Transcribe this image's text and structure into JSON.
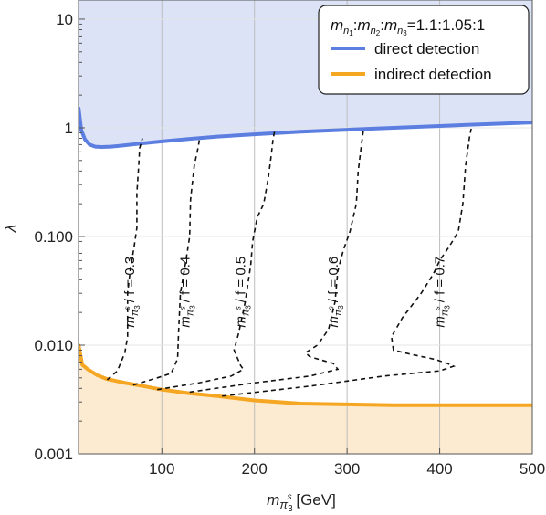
{
  "chart_data": {
    "type": "line",
    "title": "",
    "xlabel_main": "m",
    "xlabel_sub": "π",
    "xlabel_sub2": "3",
    "xlabel_sup": "s",
    "xlabel_unit": " [GeV]",
    "ylabel": "λ",
    "xlim": [
      10,
      500
    ],
    "ylim": [
      0.001,
      15
    ],
    "yscale": "log",
    "xticks": [
      100,
      200,
      300,
      400,
      500
    ],
    "xtick_labels": [
      "100",
      "200",
      "300",
      "400",
      "500"
    ],
    "yticks": [
      0.001,
      0.01,
      0.1,
      1,
      10
    ],
    "ytick_labels": [
      "0.001",
      "0.010",
      "0.100",
      "1",
      "10"
    ],
    "grid": true,
    "legend_position": "top-right",
    "legend_title": "m_{n1}:m_{n2}:m_{n3}=1.1:1.05:1",
    "legend_title_parts": {
      "m": "m",
      "n": "n",
      "s1": "1",
      "s2": "2",
      "s3": "3",
      "c": ":",
      "ratio": "=1.1:1.05:1"
    },
    "series": [
      {
        "name": "direct detection",
        "color": "#5b7ee0",
        "fill": "#dce3f7",
        "x": [
          10,
          13,
          17,
          22,
          28,
          35,
          45,
          60,
          80,
          100,
          130,
          160,
          200,
          250,
          300,
          350,
          400,
          450,
          500
        ],
        "y": [
          1.55,
          0.95,
          0.78,
          0.7,
          0.67,
          0.665,
          0.67,
          0.69,
          0.72,
          0.75,
          0.79,
          0.83,
          0.87,
          0.92,
          0.96,
          1.0,
          1.04,
          1.08,
          1.12
        ]
      },
      {
        "name": "indirect detection",
        "color": "#f5a623",
        "fill": "#fcebd0",
        "x": [
          10,
          14,
          20,
          30,
          40,
          60,
          80,
          100,
          130,
          160,
          200,
          250,
          300,
          350,
          400,
          450,
          500
        ],
        "y": [
          0.0102,
          0.0066,
          0.006,
          0.0053,
          0.0049,
          0.0045,
          0.0042,
          0.0039,
          0.0036,
          0.0034,
          0.0031,
          0.0029,
          0.00285,
          0.0028,
          0.0028,
          0.0028,
          0.0028
        ]
      }
    ],
    "contours": [
      {
        "label": "0.3",
        "label_x": 70,
        "label_y": 0.012,
        "x": [
          41,
          52,
          60,
          63,
          63,
          66,
          70,
          73,
          73,
          75,
          76,
          79
        ],
        "y": [
          0.0048,
          0.0058,
          0.0085,
          0.012,
          0.03,
          0.05,
          0.08,
          0.12,
          0.25,
          0.45,
          0.65,
          0.8
        ]
      },
      {
        "label": "0.4",
        "label_x": 130,
        "label_y": 0.012,
        "x": [
          69,
          95,
          110,
          117,
          118,
          120,
          126,
          130,
          131,
          135,
          139,
          141
        ],
        "y": [
          0.0043,
          0.005,
          0.0055,
          0.0075,
          0.013,
          0.03,
          0.06,
          0.1,
          0.22,
          0.45,
          0.65,
          0.82
        ]
      },
      {
        "label": "0.5",
        "label_x": 190,
        "label_y": 0.012,
        "x": [
          95,
          140,
          175,
          188,
          185,
          178,
          183,
          190,
          196,
          198,
          203,
          210,
          215,
          218,
          220,
          222
        ],
        "y": [
          0.0039,
          0.0045,
          0.0052,
          0.006,
          0.0065,
          0.009,
          0.013,
          0.025,
          0.055,
          0.09,
          0.15,
          0.2,
          0.35,
          0.55,
          0.78,
          0.96
        ]
      },
      {
        "label": "0.6",
        "label_x": 290,
        "label_y": 0.012,
        "x": [
          130,
          200,
          260,
          290,
          285,
          260,
          255,
          268,
          280,
          287,
          290,
          296,
          303,
          310,
          312,
          316,
          318
        ],
        "y": [
          0.0037,
          0.0045,
          0.0052,
          0.006,
          0.0068,
          0.0078,
          0.0085,
          0.01,
          0.014,
          0.025,
          0.048,
          0.075,
          0.11,
          0.2,
          0.4,
          0.75,
          1.0
        ]
      },
      {
        "label": "0.7",
        "label_x": 405,
        "label_y": 0.012,
        "x": [
          165,
          260,
          340,
          400,
          415,
          408,
          395,
          370,
          350,
          348,
          360,
          380,
          393,
          400,
          410,
          420,
          425,
          428,
          432,
          434
        ],
        "y": [
          0.0034,
          0.0042,
          0.0052,
          0.0058,
          0.0064,
          0.0068,
          0.0074,
          0.0082,
          0.009,
          0.012,
          0.018,
          0.03,
          0.045,
          0.06,
          0.08,
          0.11,
          0.2,
          0.45,
          0.8,
          0.98
        ]
      }
    ],
    "contour_label_prefix": "/ f = ",
    "contour_label_m": "m",
    "contour_label_sub": "π",
    "contour_label_sub2": "3",
    "contour_label_sup": "s"
  }
}
